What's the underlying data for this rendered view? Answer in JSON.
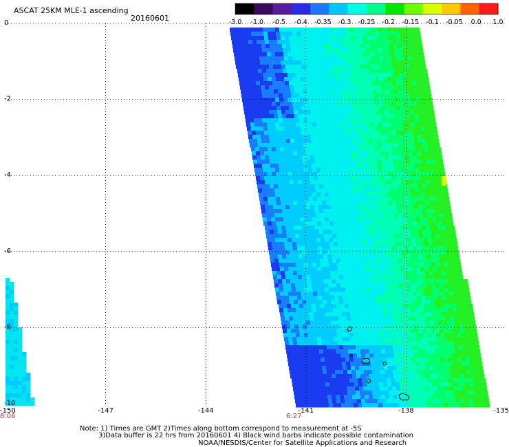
{
  "header": {
    "title": "ASCAT 25KM MLE-1 ascending",
    "date": "20160601"
  },
  "colorbar": {
    "labels": [
      "-3.0",
      "-1.0",
      "-0.5",
      "-0.4",
      "-0.35",
      "-0.3",
      "-0.25",
      "-0.2",
      "-0.15",
      "-0.1",
      "-0.05",
      "0.0",
      "1.0"
    ],
    "colors": [
      "#000000",
      "#3a0a5a",
      "#5a1aa0",
      "#2a2ae0",
      "#1a78ff",
      "#00c8ff",
      "#00ffe0",
      "#00ff8c",
      "#00e600",
      "#6cff00",
      "#d8ff00",
      "#ffc800",
      "#ff6400",
      "#ff1a1a"
    ]
  },
  "map": {
    "lon_range": [
      -150,
      -135
    ],
    "lat_range": [
      -10,
      0
    ],
    "x_ticks": [
      "-150",
      "-147",
      "-144",
      "-141",
      "-138",
      "-135"
    ],
    "y_ticks": [
      "0",
      "-2",
      "-4",
      "-6",
      "-8",
      "-10"
    ],
    "time_labels": [
      {
        "lon": -150,
        "text": "8:06"
      },
      {
        "lon": -141,
        "text": "6:27"
      }
    ]
  },
  "notes": {
    "line1": "Note: 1) Times are GMT 2)Times along bottom correspond to measurement at -5S",
    "line2": "3)Data buffer is 22 hrs from 20160601 4) Black wind barbs indicate possible contamination",
    "line3": "NOAA/NESDIS/Center for Satellite Applications and Research"
  }
}
